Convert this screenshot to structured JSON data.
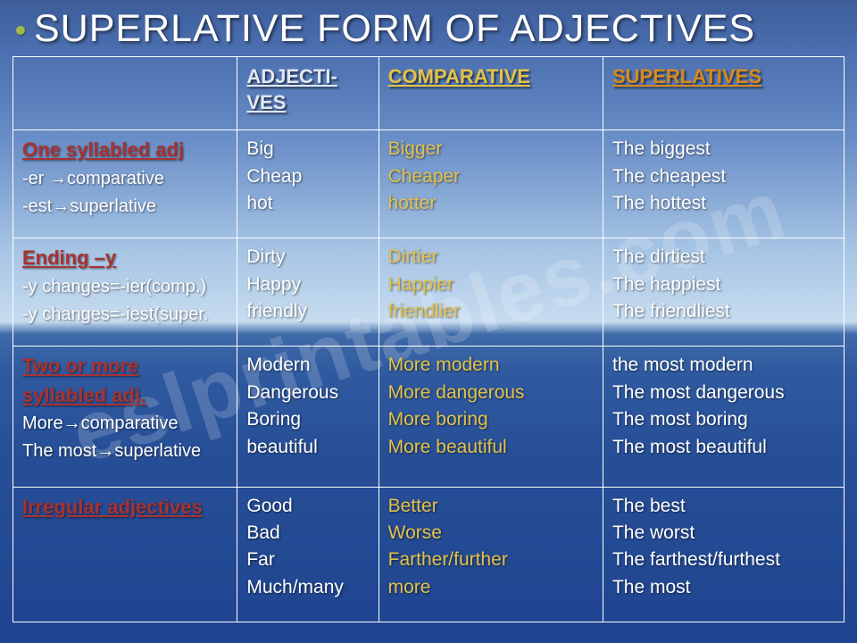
{
  "title": "SUPERLATIVE FORM OF ADJECTIVES",
  "watermark": "eslprintables.com",
  "headers": {
    "adj": "ADJECTI-\nVES",
    "comp": "COMPARATIVE",
    "sup": "SUPERLATIVES"
  },
  "rows": [
    {
      "head": "One syllabled adj",
      "subs": [
        "-er →comparative",
        "-est→superlative"
      ],
      "adj": [
        "Big",
        "Cheap",
        "hot"
      ],
      "comp": [
        "Bigger",
        "Cheaper",
        "hotter"
      ],
      "sup": [
        "The biggest",
        "The cheapest",
        "The hottest"
      ]
    },
    {
      "head": "Ending –y",
      "subs": [
        "-y changes=-ier(comp.)",
        "-y changes=-iest(super."
      ],
      "adj": [
        "Dirty",
        "Happy",
        "friendly"
      ],
      "comp": [
        "Dirtier",
        "Happier",
        "friendlier"
      ],
      "sup": [
        "The dirtiest",
        "The happiest",
        "The friendliest"
      ]
    },
    {
      "head": "Two or more syllabled adj.",
      "subs": [
        "More→comparative",
        "The most→superlative"
      ],
      "adj": [
        "Modern",
        "Dangerous",
        "Boring",
        "beautiful"
      ],
      "comp": [
        "More modern",
        "More dangerous",
        "More boring",
        "More beautiful"
      ],
      "sup": [
        "the most modern",
        "The most dangerous",
        "The most boring",
        "The most beautiful"
      ]
    },
    {
      "head": "Irregular adjectives",
      "subs": [],
      "adj": [
        "Good",
        "Bad",
        "Far",
        "Much/many"
      ],
      "comp": [
        "Better",
        "Worse",
        "Farther/further",
        "more"
      ],
      "sup": [
        "The best",
        "The worst",
        "The farthest/furthest",
        "The most"
      ]
    }
  ]
}
